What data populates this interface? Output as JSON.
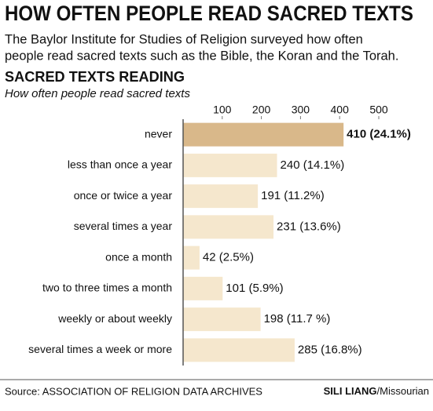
{
  "chart_data": {
    "type": "bar",
    "orientation": "horizontal",
    "title": "HOW OFTEN PEOPLE READ SACRED TEXTS",
    "subtitle": [
      "The Baylor Institute for Studies of Religion surveyed how often",
      "people read sacred texts such as the Bible, the Koran and the Torah."
    ],
    "chart_title": "SACRED TEXTS READING",
    "chart_subtitle": "How often people read sacred texts",
    "categories": [
      "never",
      "less than once a year",
      "once or twice a year",
      "several times a year",
      "once a month",
      "two to three times a month",
      "weekly or about weekly",
      "several times a week or more"
    ],
    "values": [
      410,
      240,
      191,
      231,
      42,
      101,
      198,
      285
    ],
    "value_labels": [
      "410 (24.1%)",
      "240 (14.1%)",
      "191 (11.2%)",
      "231 (13.6%)",
      "42 (2.5%)",
      "101 (5.9%)",
      "198 (11.7 %)",
      "285 (16.8%)"
    ],
    "colors": [
      "#d9b88a",
      "#f5e7cd",
      "#f5e7cd",
      "#f5e7cd",
      "#f5e7cd",
      "#f5e7cd",
      "#f5e7cd",
      "#f5e7cd"
    ],
    "xlim": [
      0,
      500
    ],
    "xticks": [
      100,
      200,
      300,
      400,
      500
    ],
    "grid": false,
    "source": "Source: ASSOCIATION OF RELIGION DATA ARCHIVES",
    "credit_name": "SILI LIANG",
    "credit_org": "/Missourian"
  }
}
